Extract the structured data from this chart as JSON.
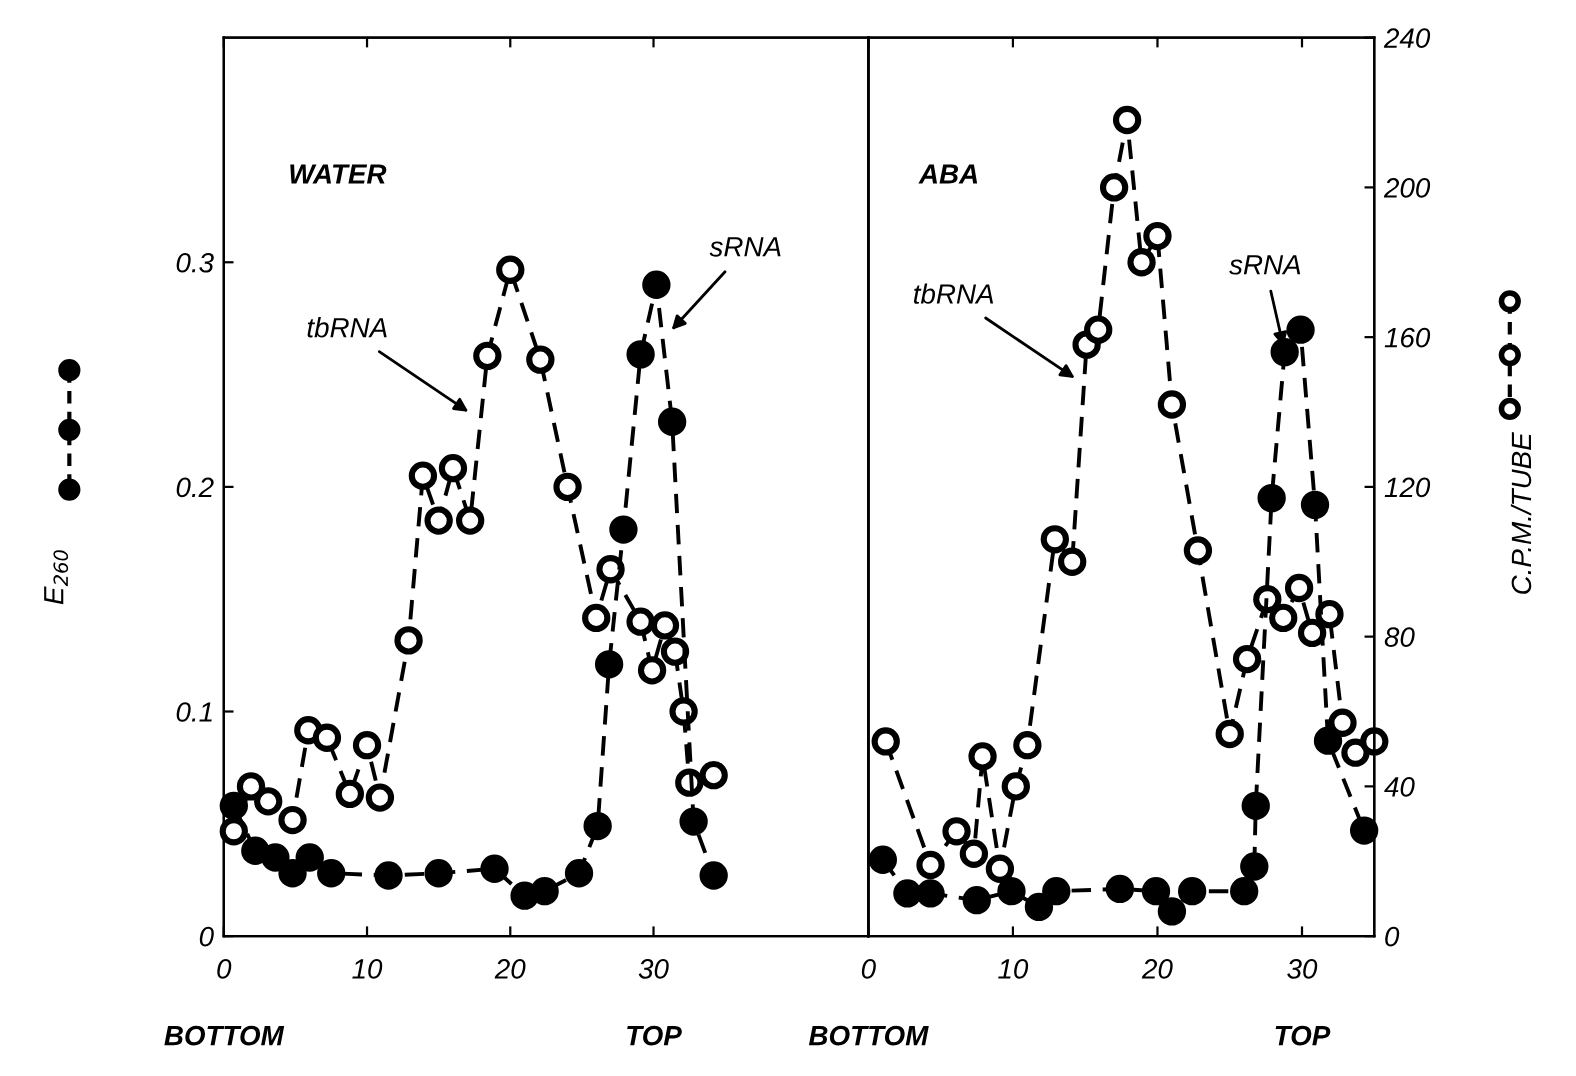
{
  "chart_data": [
    {
      "type": "line",
      "xlim": [
        0,
        45
      ],
      "xticks": [
        0,
        10,
        20,
        30
      ],
      "ylim": [
        0,
        0.4
      ],
      "yticks": [
        0,
        0.1,
        0.2,
        0.3
      ],
      "y2lim": [
        0,
        240
      ],
      "ylabel": "E$_{260}$",
      "line_style": "dashed",
      "marker": "circle",
      "grid": false,
      "legend": false,
      "series": [
        {
          "color": "#000000",
          "x": [
            0.7,
            2.2,
            3.6,
            4.8,
            6.0,
            7.5,
            11.5,
            15.0,
            18.9,
            21.0,
            22.4,
            24.8,
            26.1,
            26.9,
            27.9,
            29.1,
            30.2,
            31.3,
            32.8,
            34.2
          ],
          "values": [
            0.058,
            0.038,
            0.035,
            0.028,
            0.035,
            0.028,
            0.027,
            0.028,
            0.03,
            0.018,
            0.02,
            0.028,
            0.049,
            0.121,
            0.181,
            0.259,
            0.29,
            0.229,
            0.051,
            0.027
          ]
        },
        {
          "color": "#000000",
          "axis": "y2",
          "x": [
            0.7,
            1.9,
            3.1,
            4.8,
            5.9,
            7.2,
            8.8,
            10.0,
            10.9,
            12.9,
            13.9,
            15.0,
            16.0,
            17.2,
            18.4,
            20.0,
            22.1,
            24.0,
            26.0,
            27.0,
            29.1,
            29.9,
            30.8,
            31.5,
            32.1,
            32.5,
            34.2
          ],
          "values": [
            28,
            40,
            36,
            31,
            55,
            53,
            38,
            51,
            37,
            79,
            123,
            111,
            125,
            111,
            155,
            178,
            154,
            120,
            85,
            98,
            84,
            71,
            83,
            76,
            60,
            41,
            43
          ]
        }
      ],
      "annotations": [
        "WATER",
        "BOTTOM",
        "TOP",
        {
          "text": "tbRNA",
          "x": 17.4,
          "y": 0.232
        },
        {
          "text": "sRNA",
          "x": 31.0,
          "y": 0.268
        }
      ]
    },
    {
      "type": "line",
      "xlim": [
        0,
        35
      ],
      "xticks": [
        0,
        10,
        20,
        30
      ],
      "ylim": [
        0,
        0.4
      ],
      "y2lim": [
        0,
        240
      ],
      "y2ticks": [
        0,
        40,
        80,
        120,
        160,
        200,
        240
      ],
      "y2label": "C.P.M./TUBE",
      "line_style": "dashed",
      "marker": "circle",
      "grid": false,
      "legend": false,
      "series": [
        {
          "color": "#000000",
          "x": [
            1.0,
            2.7,
            4.3,
            7.5,
            9.9,
            11.8,
            13.0,
            17.4,
            19.9,
            21.0,
            22.4,
            26.0,
            26.7,
            26.8,
            27.9,
            28.8,
            29.9,
            30.9,
            31.8,
            34.3
          ],
          "values": [
            0.034,
            0.019,
            0.019,
            0.016,
            0.02,
            0.013,
            0.02,
            0.021,
            0.02,
            0.011,
            0.02,
            0.02,
            0.031,
            0.058,
            0.195,
            0.26,
            0.27,
            0.192,
            0.087,
            0.047
          ]
        },
        {
          "color": "#000000",
          "axis": "y2",
          "x": [
            1.2,
            4.3,
            6.1,
            7.3,
            7.9,
            9.1,
            10.2,
            11.0,
            12.9,
            14.1,
            15.1,
            15.9,
            17.0,
            17.9,
            18.9,
            20.0,
            21.0,
            22.8,
            25.0,
            26.2,
            27.6,
            28.7,
            29.8,
            30.7,
            31.9,
            32.8,
            33.7,
            35.0
          ],
          "values": [
            52,
            19,
            28,
            22,
            48,
            18,
            40,
            51,
            106,
            100,
            158,
            162,
            200,
            218,
            180,
            187,
            142,
            103,
            54,
            74,
            90,
            85,
            93,
            81,
            86,
            57,
            49,
            52
          ]
        }
      ],
      "annotations": [
        "ABA",
        "BOTTOM",
        "TOP",
        {
          "text": "tbRNA",
          "x": 14.6,
          "y": 0.247
        },
        {
          "text": "sRNA",
          "x": 28.8,
          "y": 0.26
        }
      ]
    }
  ]
}
